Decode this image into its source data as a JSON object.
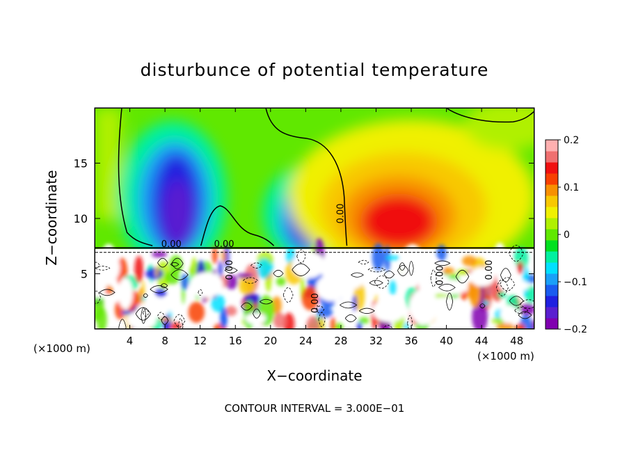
{
  "chart_data": {
    "type": "heatmap",
    "title": "disturbunce of potential temperature",
    "xlabel": "X−coordinate",
    "ylabel": "Z−coordinate",
    "x_unit": "(×1000 m)",
    "x_ticks": [
      "4",
      "8",
      "12",
      "16",
      "20",
      "24",
      "28",
      "32",
      "36",
      "40",
      "44",
      "48"
    ],
    "y_ticks": [
      "5",
      "10",
      "15"
    ],
    "xlim": [
      0,
      50
    ],
    "ylim": [
      0,
      20
    ],
    "colorbar": {
      "range": [
        -0.2,
        0.2
      ],
      "tick_labels": [
        "0.2",
        "0.1",
        "0",
        "−0.1",
        "−0.2"
      ],
      "colors": [
        "#8000b0",
        "#5a1fd0",
        "#2020e0",
        "#1a5cf0",
        "#1aa0f8",
        "#00e0ff",
        "#00f0a0",
        "#00e020",
        "#60e800",
        "#b0f000",
        "#f0f000",
        "#f8c800",
        "#f89000",
        "#f84000",
        "#f01010",
        "#f07070",
        "#ffb0b0"
      ]
    },
    "contour_labels": [
      "0.00",
      "0.00",
      "0.00",
      "0.00",
      "0.00",
      "0.00",
      "0.00"
    ],
    "contour_interval": "CONTOUR INTERVAL = 3.000E−01",
    "features": [
      {
        "x": 8.5,
        "z": 13,
        "value": -0.16
      },
      {
        "x": 24,
        "z": 11,
        "value": -0.15
      },
      {
        "x": 34,
        "z": 10.5,
        "value": 0.13
      },
      {
        "x": 48,
        "z": 19,
        "value": 0.05
      }
    ]
  },
  "footer": {
    "contour_interval": "CONTOUR INTERVAL = 3.000E−01"
  }
}
